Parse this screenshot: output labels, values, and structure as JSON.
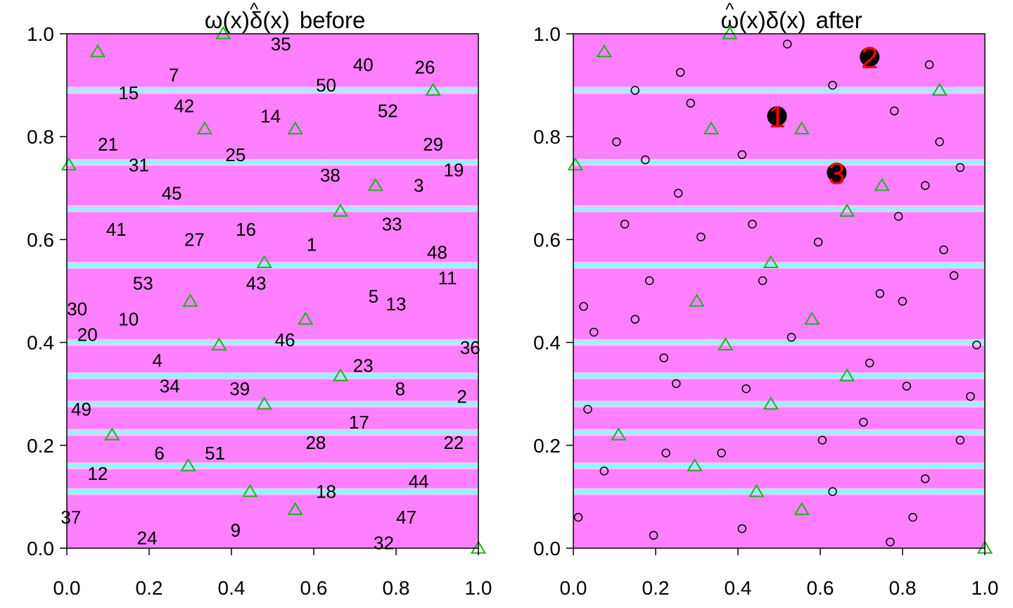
{
  "figure": {
    "colors": {
      "background": "#ffffff",
      "heat_base": "#ff80ff",
      "band_stripe": "#80ffff",
      "band_edge": "#ffc0ff",
      "triangle": "#22b022",
      "point_stroke": "#000000",
      "selected_fill": "#000000",
      "rank_label": "#ff0000"
    }
  },
  "chart_data": [
    {
      "panel": "before",
      "type": "scatter",
      "title": "ω(x)δ̂(x)  before",
      "title_parts": {
        "omega": "ω(x)",
        "delta": "δ",
        "delta_arg": "(x)",
        "suffix": "before"
      },
      "xlim": [
        0,
        1
      ],
      "ylim": [
        0,
        1
      ],
      "xticks": [
        "0.0",
        "0.2",
        "0.4",
        "0.6",
        "0.8",
        "1.0"
      ],
      "yticks": [
        "0.0",
        "0.2",
        "0.4",
        "0.6",
        "0.8",
        "1.0"
      ],
      "heatmap_bands_y": [
        0.11,
        0.16,
        0.225,
        0.28,
        0.335,
        0.4,
        0.55,
        0.66,
        0.75,
        0.89
      ],
      "triangles": [
        {
          "x": 0.075,
          "y": 0.965
        },
        {
          "x": 0.38,
          "y": 1.0
        },
        {
          "x": 0.89,
          "y": 0.89
        },
        {
          "x": 0.335,
          "y": 0.815
        },
        {
          "x": 0.555,
          "y": 0.815
        },
        {
          "x": 0.005,
          "y": 0.745
        },
        {
          "x": 0.75,
          "y": 0.705
        },
        {
          "x": 0.665,
          "y": 0.655
        },
        {
          "x": 0.48,
          "y": 0.555
        },
        {
          "x": 0.3,
          "y": 0.48
        },
        {
          "x": 0.58,
          "y": 0.445
        },
        {
          "x": 0.37,
          "y": 0.395
        },
        {
          "x": 0.665,
          "y": 0.335
        },
        {
          "x": 0.48,
          "y": 0.28
        },
        {
          "x": 0.11,
          "y": 0.22
        },
        {
          "x": 0.295,
          "y": 0.16
        },
        {
          "x": 0.445,
          "y": 0.11
        },
        {
          "x": 0.555,
          "y": 0.075
        },
        {
          "x": 1.0,
          "y": 0.0
        }
      ],
      "labels": [
        {
          "text": "35",
          "x": 0.52,
          "y": 0.98
        },
        {
          "text": "40",
          "x": 0.72,
          "y": 0.94
        },
        {
          "text": "26",
          "x": 0.87,
          "y": 0.935
        },
        {
          "text": "7",
          "x": 0.26,
          "y": 0.92
        },
        {
          "text": "50",
          "x": 0.63,
          "y": 0.9
        },
        {
          "text": "15",
          "x": 0.15,
          "y": 0.885
        },
        {
          "text": "42",
          "x": 0.285,
          "y": 0.86
        },
        {
          "text": "52",
          "x": 0.78,
          "y": 0.85
        },
        {
          "text": "14",
          "x": 0.495,
          "y": 0.84
        },
        {
          "text": "21",
          "x": 0.1,
          "y": 0.785
        },
        {
          "text": "29",
          "x": 0.89,
          "y": 0.785
        },
        {
          "text": "31",
          "x": 0.175,
          "y": 0.745
        },
        {
          "text": "25",
          "x": 0.41,
          "y": 0.765
        },
        {
          "text": "19",
          "x": 0.94,
          "y": 0.735
        },
        {
          "text": "38",
          "x": 0.64,
          "y": 0.725
        },
        {
          "text": "3",
          "x": 0.855,
          "y": 0.705
        },
        {
          "text": "45",
          "x": 0.255,
          "y": 0.69
        },
        {
          "text": "33",
          "x": 0.79,
          "y": 0.63
        },
        {
          "text": "41",
          "x": 0.12,
          "y": 0.62
        },
        {
          "text": "16",
          "x": 0.435,
          "y": 0.62
        },
        {
          "text": "27",
          "x": 0.31,
          "y": 0.6
        },
        {
          "text": "1",
          "x": 0.595,
          "y": 0.59
        },
        {
          "text": "48",
          "x": 0.9,
          "y": 0.575
        },
        {
          "text": "11",
          "x": 0.925,
          "y": 0.525
        },
        {
          "text": "53",
          "x": 0.185,
          "y": 0.515
        },
        {
          "text": "43",
          "x": 0.46,
          "y": 0.515
        },
        {
          "text": "5",
          "x": 0.745,
          "y": 0.49
        },
        {
          "text": "13",
          "x": 0.8,
          "y": 0.475
        },
        {
          "text": "30",
          "x": 0.025,
          "y": 0.465
        },
        {
          "text": "10",
          "x": 0.15,
          "y": 0.445
        },
        {
          "text": "20",
          "x": 0.05,
          "y": 0.415
        },
        {
          "text": "46",
          "x": 0.53,
          "y": 0.405
        },
        {
          "text": "36",
          "x": 0.98,
          "y": 0.39
        },
        {
          "text": "4",
          "x": 0.22,
          "y": 0.365
        },
        {
          "text": "23",
          "x": 0.72,
          "y": 0.355
        },
        {
          "text": "34",
          "x": 0.25,
          "y": 0.315
        },
        {
          "text": "39",
          "x": 0.42,
          "y": 0.31
        },
        {
          "text": "8",
          "x": 0.81,
          "y": 0.31
        },
        {
          "text": "2",
          "x": 0.96,
          "y": 0.295
        },
        {
          "text": "49",
          "x": 0.035,
          "y": 0.27
        },
        {
          "text": "17",
          "x": 0.71,
          "y": 0.245
        },
        {
          "text": "28",
          "x": 0.605,
          "y": 0.205
        },
        {
          "text": "22",
          "x": 0.94,
          "y": 0.205
        },
        {
          "text": "6",
          "x": 0.225,
          "y": 0.185
        },
        {
          "text": "51",
          "x": 0.36,
          "y": 0.185
        },
        {
          "text": "12",
          "x": 0.075,
          "y": 0.145
        },
        {
          "text": "44",
          "x": 0.855,
          "y": 0.13
        },
        {
          "text": "18",
          "x": 0.63,
          "y": 0.11
        },
        {
          "text": "37",
          "x": 0.01,
          "y": 0.06
        },
        {
          "text": "47",
          "x": 0.825,
          "y": 0.06
        },
        {
          "text": "9",
          "x": 0.41,
          "y": 0.035
        },
        {
          "text": "24",
          "x": 0.195,
          "y": 0.02
        },
        {
          "text": "32",
          "x": 0.77,
          "y": 0.01
        }
      ]
    },
    {
      "panel": "after",
      "type": "scatter",
      "title": "ω(x)δ̂(x)  after",
      "title_parts": {
        "omega": "ω(x)",
        "delta": "δ",
        "delta_arg": "(x)",
        "suffix": "after"
      },
      "xlim": [
        0,
        1
      ],
      "ylim": [
        0,
        1
      ],
      "xticks": [
        "0.0",
        "0.2",
        "0.4",
        "0.6",
        "0.8",
        "1.0"
      ],
      "yticks": [
        "0.0",
        "0.2",
        "0.4",
        "0.6",
        "0.8",
        "1.0"
      ],
      "heatmap_bands_y": [
        0.11,
        0.16,
        0.225,
        0.28,
        0.335,
        0.4,
        0.55,
        0.66,
        0.75,
        0.89
      ],
      "triangles": [
        {
          "x": 0.075,
          "y": 0.965
        },
        {
          "x": 0.38,
          "y": 1.0
        },
        {
          "x": 0.89,
          "y": 0.89
        },
        {
          "x": 0.335,
          "y": 0.815
        },
        {
          "x": 0.555,
          "y": 0.815
        },
        {
          "x": 0.005,
          "y": 0.745
        },
        {
          "x": 0.75,
          "y": 0.705
        },
        {
          "x": 0.665,
          "y": 0.655
        },
        {
          "x": 0.48,
          "y": 0.555
        },
        {
          "x": 0.3,
          "y": 0.48
        },
        {
          "x": 0.58,
          "y": 0.445
        },
        {
          "x": 0.37,
          "y": 0.395
        },
        {
          "x": 0.665,
          "y": 0.335
        },
        {
          "x": 0.48,
          "y": 0.28
        },
        {
          "x": 0.11,
          "y": 0.22
        },
        {
          "x": 0.295,
          "y": 0.16
        },
        {
          "x": 0.445,
          "y": 0.11
        },
        {
          "x": 0.555,
          "y": 0.075
        },
        {
          "x": 1.0,
          "y": 0.0
        }
      ],
      "points": [
        {
          "x": 0.52,
          "y": 0.98
        },
        {
          "x": 0.865,
          "y": 0.94
        },
        {
          "x": 0.26,
          "y": 0.925
        },
        {
          "x": 0.63,
          "y": 0.9
        },
        {
          "x": 0.15,
          "y": 0.89
        },
        {
          "x": 0.285,
          "y": 0.865
        },
        {
          "x": 0.78,
          "y": 0.85
        },
        {
          "x": 0.105,
          "y": 0.79
        },
        {
          "x": 0.89,
          "y": 0.79
        },
        {
          "x": 0.41,
          "y": 0.765
        },
        {
          "x": 0.175,
          "y": 0.755
        },
        {
          "x": 0.94,
          "y": 0.74
        },
        {
          "x": 0.855,
          "y": 0.705
        },
        {
          "x": 0.255,
          "y": 0.69
        },
        {
          "x": 0.79,
          "y": 0.645
        },
        {
          "x": 0.125,
          "y": 0.63
        },
        {
          "x": 0.435,
          "y": 0.63
        },
        {
          "x": 0.31,
          "y": 0.605
        },
        {
          "x": 0.595,
          "y": 0.595
        },
        {
          "x": 0.9,
          "y": 0.58
        },
        {
          "x": 0.925,
          "y": 0.53
        },
        {
          "x": 0.185,
          "y": 0.52
        },
        {
          "x": 0.46,
          "y": 0.52
        },
        {
          "x": 0.745,
          "y": 0.495
        },
        {
          "x": 0.8,
          "y": 0.48
        },
        {
          "x": 0.025,
          "y": 0.47
        },
        {
          "x": 0.15,
          "y": 0.445
        },
        {
          "x": 0.05,
          "y": 0.42
        },
        {
          "x": 0.53,
          "y": 0.41
        },
        {
          "x": 0.98,
          "y": 0.395
        },
        {
          "x": 0.22,
          "y": 0.37
        },
        {
          "x": 0.72,
          "y": 0.36
        },
        {
          "x": 0.25,
          "y": 0.32
        },
        {
          "x": 0.42,
          "y": 0.31
        },
        {
          "x": 0.81,
          "y": 0.315
        },
        {
          "x": 0.965,
          "y": 0.295
        },
        {
          "x": 0.035,
          "y": 0.27
        },
        {
          "x": 0.705,
          "y": 0.245
        },
        {
          "x": 0.605,
          "y": 0.21
        },
        {
          "x": 0.94,
          "y": 0.21
        },
        {
          "x": 0.225,
          "y": 0.185
        },
        {
          "x": 0.36,
          "y": 0.185
        },
        {
          "x": 0.075,
          "y": 0.15
        },
        {
          "x": 0.855,
          "y": 0.135
        },
        {
          "x": 0.63,
          "y": 0.11
        },
        {
          "x": 0.012,
          "y": 0.06
        },
        {
          "x": 0.825,
          "y": 0.06
        },
        {
          "x": 0.41,
          "y": 0.038
        },
        {
          "x": 0.195,
          "y": 0.025
        },
        {
          "x": 0.77,
          "y": 0.012
        }
      ],
      "selected": [
        {
          "rank": "1",
          "x": 0.495,
          "y": 0.84
        },
        {
          "rank": "2",
          "x": 0.72,
          "y": 0.955
        },
        {
          "rank": "3",
          "x": 0.64,
          "y": 0.73
        }
      ]
    }
  ]
}
